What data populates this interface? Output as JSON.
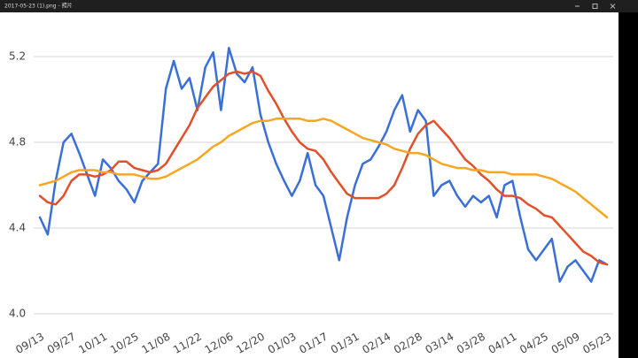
{
  "window": {
    "title": "2017-05-23 (1).png - 照片"
  },
  "chart_data": {
    "type": "line",
    "categories": [
      "09/13",
      null,
      null,
      null,
      "09/27",
      null,
      null,
      null,
      "10/11",
      null,
      null,
      null,
      "10/25",
      null,
      null,
      null,
      "11/08",
      null,
      null,
      null,
      "11/22",
      null,
      null,
      null,
      "12/06",
      null,
      null,
      null,
      "12/20",
      null,
      null,
      null,
      "01/03",
      null,
      null,
      null,
      "01/17",
      null,
      null,
      null,
      "01/31",
      null,
      null,
      null,
      "02/14",
      null,
      null,
      null,
      "02/28",
      null,
      null,
      null,
      "03/14",
      null,
      null,
      null,
      "03/28",
      null,
      null,
      null,
      "04/11",
      null,
      null,
      null,
      "04/25",
      null,
      null,
      null,
      "05/09",
      null,
      null,
      null,
      "05/23"
    ],
    "series": [
      {
        "color": "#3b6fd8",
        "values": [
          4.45,
          4.37,
          4.62,
          4.8,
          4.84,
          4.75,
          4.65,
          4.55,
          4.72,
          4.68,
          4.62,
          4.58,
          4.52,
          4.62,
          4.66,
          4.7,
          5.05,
          5.18,
          5.05,
          5.1,
          4.95,
          5.15,
          5.22,
          4.95,
          5.24,
          5.12,
          5.08,
          5.15,
          4.93,
          4.8,
          4.7,
          4.62,
          4.55,
          4.62,
          4.75,
          4.6,
          4.55,
          4.4,
          4.25,
          4.45,
          4.6,
          4.7,
          4.72,
          4.78,
          4.85,
          4.95,
          5.02,
          4.85,
          4.95,
          4.9,
          4.55,
          4.6,
          4.62,
          4.55,
          4.5,
          4.55,
          4.52,
          4.55,
          4.45,
          4.6,
          4.62,
          4.45,
          4.3,
          4.25,
          4.3,
          4.35,
          4.15,
          4.22,
          4.25,
          4.2,
          4.15,
          4.25,
          4.23
        ]
      },
      {
        "color": "#e0502a",
        "values": [
          4.55,
          4.52,
          4.51,
          4.55,
          4.62,
          4.65,
          4.65,
          4.64,
          4.65,
          4.67,
          4.71,
          4.71,
          4.68,
          4.67,
          4.66,
          4.67,
          4.7,
          4.76,
          4.82,
          4.88,
          4.96,
          5.01,
          5.06,
          5.09,
          5.12,
          5.13,
          5.12,
          5.13,
          5.11,
          5.04,
          4.98,
          4.91,
          4.85,
          4.8,
          4.77,
          4.76,
          4.72,
          4.66,
          4.61,
          4.56,
          4.54,
          4.54,
          4.54,
          4.54,
          4.56,
          4.6,
          4.68,
          4.77,
          4.84,
          4.88,
          4.9,
          4.86,
          4.82,
          4.77,
          4.72,
          4.69,
          4.65,
          4.62,
          4.58,
          4.55,
          4.55,
          4.54,
          4.51,
          4.49,
          4.46,
          4.45,
          4.41,
          4.37,
          4.33,
          4.29,
          4.27,
          4.24,
          4.23
        ]
      },
      {
        "color": "#f5a623",
        "values": [
          4.6,
          4.61,
          4.62,
          4.64,
          4.66,
          4.67,
          4.67,
          4.67,
          4.66,
          4.66,
          4.65,
          4.65,
          4.65,
          4.64,
          4.63,
          4.63,
          4.64,
          4.66,
          4.68,
          4.7,
          4.72,
          4.75,
          4.78,
          4.8,
          4.83,
          4.85,
          4.87,
          4.89,
          4.9,
          4.9,
          4.91,
          4.91,
          4.91,
          4.91,
          4.9,
          4.9,
          4.91,
          4.9,
          4.88,
          4.86,
          4.84,
          4.82,
          4.81,
          4.8,
          4.79,
          4.77,
          4.76,
          4.75,
          4.75,
          4.74,
          4.72,
          4.7,
          4.69,
          4.68,
          4.68,
          4.67,
          4.67,
          4.66,
          4.66,
          4.66,
          4.65,
          4.65,
          4.65,
          4.65,
          4.64,
          4.63,
          4.61,
          4.59,
          4.57,
          4.54,
          4.51,
          4.48,
          4.45
        ]
      }
    ],
    "ylim": [
      4.0,
      5.2
    ],
    "yticks": [
      {
        "value": 4.0,
        "label": "4.0"
      },
      4.4,
      4.8,
      5.2
    ],
    "grid": true
  }
}
